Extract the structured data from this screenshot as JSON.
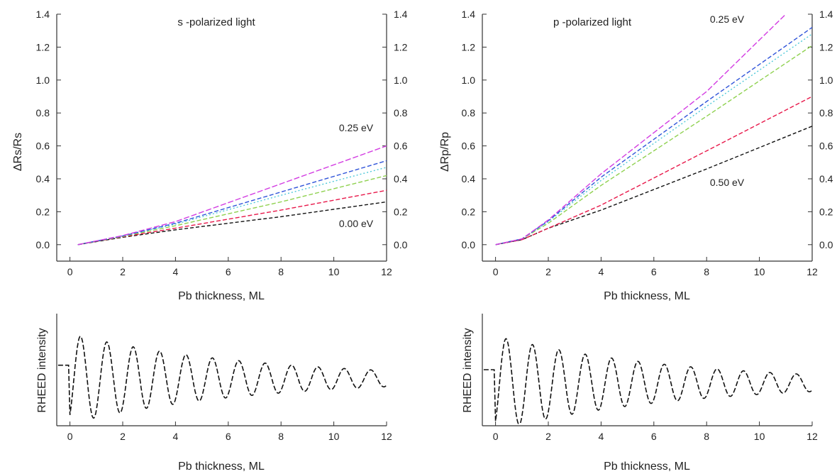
{
  "colors": {
    "axis": "#333333",
    "black": "#111111",
    "red": "#e8184a",
    "green": "#8fd14f",
    "cyan": "#4fc9d9",
    "blue": "#2f54d9",
    "magenta": "#d33ce2"
  },
  "chart_data": [
    {
      "id": "s",
      "type": "line",
      "title": "s -polarized light",
      "xlabel": "Pb thickness, ML",
      "ylabel": "ΔRs/Rs",
      "xlim": [
        -0.5,
        12
      ],
      "ylim": [
        -0.1,
        1.4
      ],
      "xticks": [
        "0",
        "2",
        "4",
        "6",
        "8",
        "10",
        "12"
      ],
      "yticks": [
        "0.0",
        "0.2",
        "0.4",
        "0.6",
        "0.8",
        "1.0",
        "1.2",
        "1.4"
      ],
      "right_ticks": true,
      "annotations": [
        "0.25 eV",
        "0.00 eV"
      ],
      "series": [
        {
          "color": "black",
          "x": [
            0.3,
            2,
            4,
            8,
            12
          ],
          "values": [
            0.0,
            0.045,
            0.09,
            0.17,
            0.26
          ]
        },
        {
          "color": "red",
          "x": [
            0.3,
            2,
            4,
            8,
            12
          ],
          "values": [
            0.0,
            0.048,
            0.1,
            0.21,
            0.33
          ]
        },
        {
          "color": "green",
          "x": [
            0.3,
            2,
            4,
            8,
            12
          ],
          "values": [
            0.0,
            0.05,
            0.115,
            0.26,
            0.42
          ]
        },
        {
          "color": "cyan",
          "x": [
            0.3,
            2,
            4,
            8,
            12
          ],
          "values": [
            0.0,
            0.052,
            0.125,
            0.3,
            0.47
          ]
        },
        {
          "color": "blue",
          "x": [
            0.3,
            2,
            4,
            8,
            12
          ],
          "values": [
            0.0,
            0.053,
            0.13,
            0.32,
            0.51
          ]
        },
        {
          "color": "magenta",
          "x": [
            0.3,
            2,
            4,
            8,
            12
          ],
          "values": [
            0.0,
            0.055,
            0.14,
            0.37,
            0.6
          ]
        }
      ]
    },
    {
      "id": "p",
      "type": "line",
      "title": "p -polarized light",
      "xlabel": "Pb thickness, ML",
      "ylabel": "ΔRp/Rp",
      "xlim": [
        -0.5,
        12
      ],
      "ylim": [
        -0.1,
        1.4
      ],
      "xticks": [
        "0",
        "2",
        "4",
        "6",
        "8",
        "10",
        "12"
      ],
      "yticks": [
        "0.0",
        "0.2",
        "0.4",
        "0.6",
        "0.8",
        "1.0",
        "1.2",
        "1.4"
      ],
      "right_ticks": true,
      "annotations": [
        "0.25 eV",
        "0.50 eV"
      ],
      "series": [
        {
          "color": "black",
          "x": [
            0,
            1,
            2,
            4,
            8,
            12
          ],
          "values": [
            0.0,
            0.03,
            0.1,
            0.21,
            0.46,
            0.72
          ]
        },
        {
          "color": "red",
          "x": [
            0,
            1,
            2,
            4,
            8,
            12
          ],
          "values": [
            0.0,
            0.03,
            0.1,
            0.24,
            0.57,
            0.9
          ]
        },
        {
          "color": "green",
          "x": [
            0,
            1,
            2,
            4,
            8,
            12
          ],
          "values": [
            0.0,
            0.035,
            0.13,
            0.36,
            0.78,
            1.21
          ]
        },
        {
          "color": "cyan",
          "x": [
            0,
            1,
            2,
            4,
            8,
            12
          ],
          "values": [
            0.0,
            0.035,
            0.14,
            0.39,
            0.84,
            1.28
          ]
        },
        {
          "color": "blue",
          "x": [
            0,
            1,
            2,
            4,
            8,
            12
          ],
          "values": [
            0.0,
            0.035,
            0.145,
            0.41,
            0.87,
            1.32
          ]
        },
        {
          "color": "magenta",
          "x": [
            0,
            1,
            2,
            4,
            8,
            11
          ],
          "values": [
            0.0,
            0.035,
            0.15,
            0.43,
            0.93,
            1.4
          ]
        }
      ]
    },
    {
      "id": "rheed_s",
      "type": "line",
      "xlabel": "Pb thickness, ML",
      "ylabel": "RHEED intensity",
      "xlim": [
        -0.5,
        12
      ],
      "xticks": [
        "0",
        "2",
        "4",
        "6",
        "8",
        "10",
        "12"
      ],
      "oscillation": {
        "start": 0,
        "end": 12,
        "baseline": 0.42,
        "amp0": 0.4,
        "decay": 7,
        "period": 1.0
      }
    },
    {
      "id": "rheed_p",
      "type": "line",
      "xlabel": "Pb thickness, ML",
      "ylabel": "RHEED intensity",
      "xlim": [
        -0.5,
        12
      ],
      "xticks": [
        "0",
        "2",
        "4",
        "6",
        "8",
        "10",
        "12"
      ],
      "oscillation": {
        "start": 0,
        "end": 12,
        "baseline": 0.38,
        "amp0": 0.42,
        "decay": 7,
        "period": 1.0
      }
    }
  ]
}
